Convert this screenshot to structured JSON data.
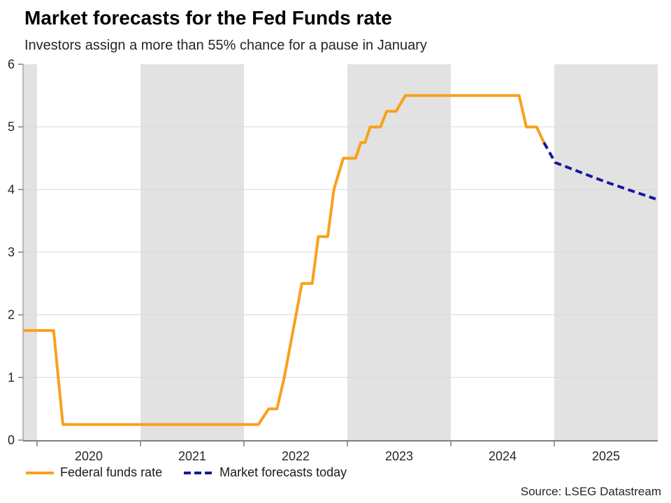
{
  "header": {
    "title": "Market forecasts for the Fed Funds rate",
    "subtitle": "Investors assign a more than 55% chance for a pause in January"
  },
  "source_note": "Source: LSEG Datastream",
  "colors": {
    "fed_line": "#F7A11A",
    "forecast_line": "#18189B",
    "band": "#E2E2E2",
    "grid": "#D9D9D9",
    "x_axis": "#7F7F7F",
    "y_axis": "#A6A6A6",
    "tick_text": "#262626"
  },
  "chart_data": {
    "type": "line",
    "title": "Market forecasts for the Fed Funds rate",
    "subtitle": "Investors assign a more than 55% chance for a pause in January",
    "xlabel": "",
    "ylabel": "",
    "xlim": [
      2019.865,
      2026.0
    ],
    "ylim": [
      0,
      6
    ],
    "yticks": [
      0,
      1,
      2,
      3,
      4,
      5,
      6
    ],
    "xticks": [
      2020,
      2021,
      2022,
      2023,
      2024,
      2025
    ],
    "xtick_labels": [
      "2020",
      "2021",
      "2022",
      "2023",
      "2024",
      "2025"
    ],
    "grid": "horizontal",
    "legend_position": "bottom-left",
    "shaded_bands": [
      [
        2019.865,
        2020.0
      ],
      [
        2021.0,
        2022.0
      ],
      [
        2023.0,
        2024.0
      ],
      [
        2025.0,
        2026.0
      ]
    ],
    "series": [
      {
        "name": "Federal funds rate",
        "style": "solid",
        "color": "#F7A11A",
        "points": [
          [
            2019.865,
            1.75
          ],
          [
            2020.16,
            1.75
          ],
          [
            2020.25,
            0.25
          ],
          [
            2022.14,
            0.25
          ],
          [
            2022.24,
            0.5
          ],
          [
            2022.32,
            0.5
          ],
          [
            2022.39,
            1.0
          ],
          [
            2022.56,
            2.5
          ],
          [
            2022.66,
            2.5
          ],
          [
            2022.72,
            3.25
          ],
          [
            2022.81,
            3.25
          ],
          [
            2022.87,
            4.0
          ],
          [
            2022.96,
            4.5
          ],
          [
            2023.08,
            4.5
          ],
          [
            2023.13,
            4.75
          ],
          [
            2023.17,
            4.75
          ],
          [
            2023.22,
            5.0
          ],
          [
            2023.32,
            5.0
          ],
          [
            2023.38,
            5.25
          ],
          [
            2023.47,
            5.25
          ],
          [
            2023.56,
            5.5
          ],
          [
            2024.66,
            5.5
          ],
          [
            2024.73,
            5.0
          ],
          [
            2024.83,
            5.0
          ],
          [
            2024.9,
            4.75
          ]
        ]
      },
      {
        "name": "Market forecasts today",
        "style": "dashed",
        "color": "#18189B",
        "points": [
          [
            2024.9,
            4.75
          ],
          [
            2025.01,
            4.43
          ],
          [
            2025.5,
            4.12
          ],
          [
            2025.98,
            3.85
          ]
        ]
      }
    ]
  }
}
